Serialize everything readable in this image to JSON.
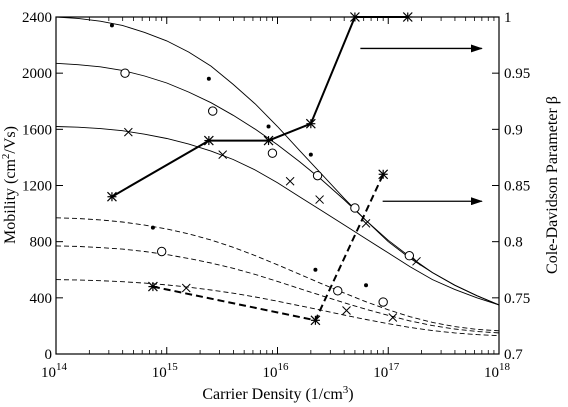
{
  "chart_data": {
    "type": "line",
    "xlabel_main": "Carrier Density (1/cm",
    "xlabel_sup": "3",
    "xlabel_tail": ")",
    "ylabel_left_main": "Mobility (cm",
    "ylabel_left_sup": "2",
    "ylabel_left_tail": "/Vs)",
    "ylabel_right": "Cole-Davidson Parameter β",
    "x_scale": "log",
    "xlim": [
      100000000000000.0,
      1e+18
    ],
    "ylim_left": [
      0,
      2400
    ],
    "ylim_right": [
      0.7,
      1.0
    ],
    "x_ticks": [
      {
        "value": 100000000000000.0,
        "base": "10",
        "exp": "14"
      },
      {
        "value": 1000000000000000.0,
        "base": "10",
        "exp": "15"
      },
      {
        "value": 1e+16,
        "base": "10",
        "exp": "16"
      },
      {
        "value": 1e+17,
        "base": "10",
        "exp": "17"
      },
      {
        "value": 1e+18,
        "base": "10",
        "exp": "18"
      }
    ],
    "y_left_ticks": [
      "0",
      "400",
      "800",
      "1200",
      "1600",
      "2000",
      "2400"
    ],
    "y_right_ticks": [
      "0.7",
      "0.75",
      "0.8",
      "0.85",
      "0.9",
      "0.95",
      "1"
    ],
    "grid": false,
    "legend": "none",
    "annotations": [
      {
        "type": "arrow",
        "points_to": "right-axis",
        "y_right": 0.972,
        "x_from": 5.6e+16,
        "x_to": 7e+17
      },
      {
        "type": "arrow",
        "points_to": "right-axis",
        "y_right": 0.836,
        "x_from": 8.9e+16,
        "x_to": 7e+17
      }
    ],
    "series": [
      {
        "axis": "left",
        "style": "fit",
        "dash": false,
        "marker": "none",
        "x": [
          100000000000000.0,
          158000000000000.0,
          251000000000000.0,
          398000000000000.0,
          631000000000000.0,
          1000000000000000.0,
          1580000000000000.0,
          2510000000000000.0,
          3980000000000000.0,
          6310000000000000.0,
          1e+16,
          1.58e+16,
          2.51e+16,
          3.98e+16,
          6.31e+16,
          1e+17,
          1.58e+17,
          2.51e+17,
          3.98e+17,
          6.31e+17,
          1e+18
        ],
        "y": [
          2400,
          2390,
          2370,
          2340,
          2290,
          2230,
          2150,
          2050,
          1920,
          1780,
          1620,
          1450,
          1280,
          1110,
          950,
          800,
          680,
          580,
          490,
          415,
          350
        ]
      },
      {
        "axis": "left",
        "style": "fit",
        "dash": false,
        "marker": "none",
        "x": [
          100000000000000.0,
          158000000000000.0,
          251000000000000.0,
          398000000000000.0,
          631000000000000.0,
          1000000000000000.0,
          1580000000000000.0,
          2510000000000000.0,
          3980000000000000.0,
          6310000000000000.0,
          1e+16,
          1.58e+16,
          2.51e+16,
          3.98e+16,
          6.31e+16,
          1e+17,
          1.58e+17,
          2.51e+17,
          3.98e+17,
          6.31e+17,
          1e+18
        ],
        "y": [
          2070,
          2060,
          2045,
          2020,
          1980,
          1930,
          1865,
          1790,
          1700,
          1600,
          1490,
          1370,
          1240,
          1100,
          950,
          810,
          690,
          580,
          490,
          415,
          350
        ]
      },
      {
        "axis": "left",
        "style": "fit",
        "dash": false,
        "marker": "none",
        "x": [
          100000000000000.0,
          158000000000000.0,
          251000000000000.0,
          398000000000000.0,
          631000000000000.0,
          1000000000000000.0,
          1580000000000000.0,
          2510000000000000.0,
          3980000000000000.0,
          6310000000000000.0,
          1e+16,
          1.58e+16,
          2.51e+16,
          3.98e+16,
          6.31e+16,
          1e+17,
          1.58e+17,
          2.51e+17,
          3.98e+17,
          6.31e+17,
          1e+18
        ],
        "y": [
          1620,
          1615,
          1605,
          1590,
          1565,
          1535,
          1495,
          1445,
          1385,
          1310,
          1220,
          1120,
          1020,
          920,
          820,
          720,
          620,
          530,
          460,
          400,
          350
        ]
      },
      {
        "axis": "left",
        "style": "data",
        "dash": false,
        "marker": "dot",
        "x": [
          320000000000000.0,
          2400000000000000.0,
          8300000000000000.0,
          2e+16,
          5e+16,
          1.5e+17
        ],
        "y": [
          2340,
          1960,
          1620,
          1420,
          1040,
          700
        ]
      },
      {
        "axis": "left",
        "style": "data",
        "dash": false,
        "marker": "circle",
        "x": [
          420000000000000.0,
          2600000000000000.0,
          9000000000000000.0,
          2.3e+16,
          5e+16,
          1.55e+17
        ],
        "y": [
          2000,
          1730,
          1430,
          1270,
          1040,
          700
        ]
      },
      {
        "axis": "left",
        "style": "data",
        "dash": false,
        "marker": "x",
        "x": [
          450000000000000.0,
          3200000000000000.0,
          1.3e+16,
          2.4e+16,
          6.3e+16,
          1.8e+17
        ],
        "y": [
          1580,
          1420,
          1230,
          1100,
          930,
          660
        ]
      },
      {
        "axis": "left",
        "style": "fit",
        "dash": true,
        "marker": "none",
        "x": [
          100000000000000.0,
          158000000000000.0,
          251000000000000.0,
          398000000000000.0,
          631000000000000.0,
          1000000000000000.0,
          1580000000000000.0,
          2510000000000000.0,
          3980000000000000.0,
          6310000000000000.0,
          1e+16,
          1.58e+16,
          2.51e+16,
          3.98e+16,
          6.31e+16,
          1e+17,
          1.58e+17,
          2.51e+17,
          3.98e+17,
          6.31e+17,
          1e+18
        ],
        "y": [
          970,
          965,
          955,
          940,
          918,
          890,
          855,
          812,
          760,
          700,
          635,
          568,
          500,
          435,
          372,
          315,
          265,
          225,
          195,
          175,
          165
        ]
      },
      {
        "axis": "left",
        "style": "fit",
        "dash": true,
        "marker": "none",
        "x": [
          100000000000000.0,
          158000000000000.0,
          251000000000000.0,
          398000000000000.0,
          631000000000000.0,
          1000000000000000.0,
          1580000000000000.0,
          2510000000000000.0,
          3980000000000000.0,
          6310000000000000.0,
          1e+16,
          1.58e+16,
          2.51e+16,
          3.98e+16,
          6.31e+16,
          1e+17,
          1.58e+17,
          2.51e+17,
          3.98e+17,
          6.31e+17,
          1e+18
        ],
        "y": [
          770,
          766,
          758,
          747,
          730,
          708,
          680,
          648,
          610,
          566,
          517,
          466,
          415,
          365,
          318,
          275,
          235,
          202,
          178,
          160,
          150
        ]
      },
      {
        "axis": "left",
        "style": "fit",
        "dash": true,
        "marker": "none",
        "x": [
          100000000000000.0,
          158000000000000.0,
          251000000000000.0,
          398000000000000.0,
          631000000000000.0,
          1000000000000000.0,
          1580000000000000.0,
          2510000000000000.0,
          3980000000000000.0,
          6310000000000000.0,
          1e+16,
          1.58e+16,
          2.51e+16,
          3.98e+16,
          6.31e+16,
          1e+17,
          1.58e+17,
          2.51e+17,
          3.98e+17,
          6.31e+17,
          1e+18
        ],
        "y": [
          530,
          527,
          522,
          515,
          505,
          492,
          476,
          456,
          433,
          406,
          376,
          344,
          311,
          278,
          246,
          216,
          189,
          167,
          150,
          138,
          130
        ]
      },
      {
        "axis": "left",
        "style": "data",
        "dash": true,
        "marker": "dot",
        "x": [
          750000000000000.0,
          2.2e+16,
          6.3e+16
        ],
        "y": [
          900,
          600,
          490
        ]
      },
      {
        "axis": "left",
        "style": "data",
        "dash": true,
        "marker": "circle",
        "x": [
          900000000000000.0,
          3.5e+16,
          9e+16
        ],
        "y": [
          730,
          450,
          370
        ]
      },
      {
        "axis": "left",
        "style": "data",
        "dash": true,
        "marker": "x",
        "x": [
          1500000000000000.0,
          4.2e+16,
          1.1e+17
        ],
        "y": [
          470,
          310,
          260
        ]
      },
      {
        "axis": "right",
        "style": "beta",
        "dash": false,
        "marker": "asterisk",
        "x": [
          320000000000000.0,
          2400000000000000.0,
          8300000000000000.0,
          2e+16,
          5e+16,
          1.5e+17
        ],
        "y": [
          0.84,
          0.89,
          0.89,
          0.905,
          1.0,
          1.0
        ]
      },
      {
        "axis": "right",
        "style": "beta",
        "dash": true,
        "marker": "asterisk",
        "x": [
          750000000000000.0,
          2.2e+16,
          9e+16
        ],
        "y": [
          0.76,
          0.73,
          0.86
        ]
      }
    ]
  }
}
